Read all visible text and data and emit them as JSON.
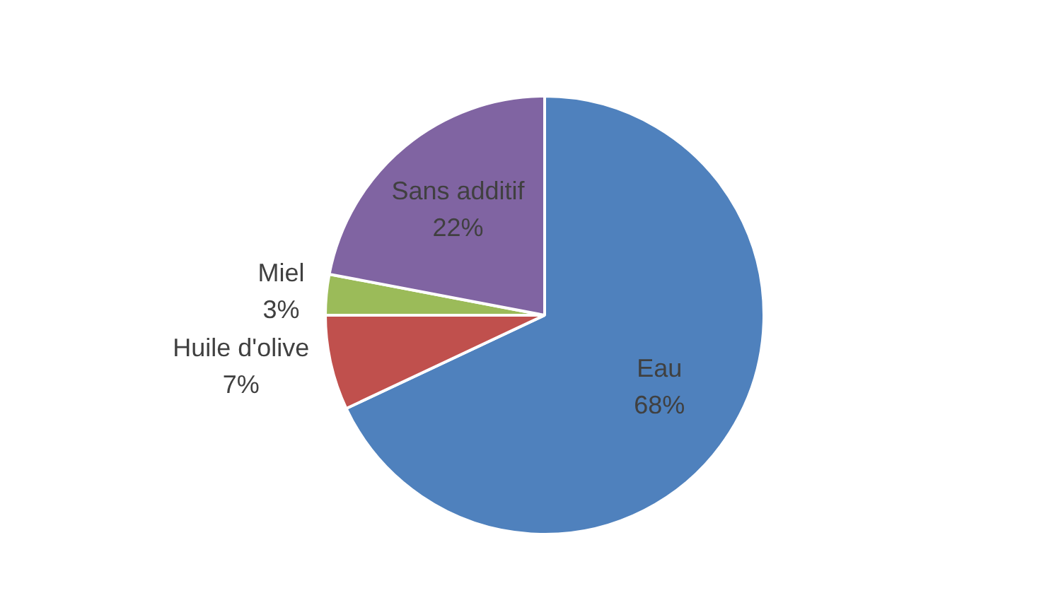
{
  "chart_data": {
    "type": "pie",
    "categories": [
      "Eau",
      "Huile d'olive",
      "Miel",
      "Sans additif"
    ],
    "values": [
      68,
      7,
      3,
      22
    ],
    "value_labels": [
      "68%",
      "7%",
      "3%",
      "22%"
    ],
    "colors": [
      "#4f81bd",
      "#c0504d",
      "#9bbb59",
      "#8064a2"
    ],
    "legend": false
  }
}
